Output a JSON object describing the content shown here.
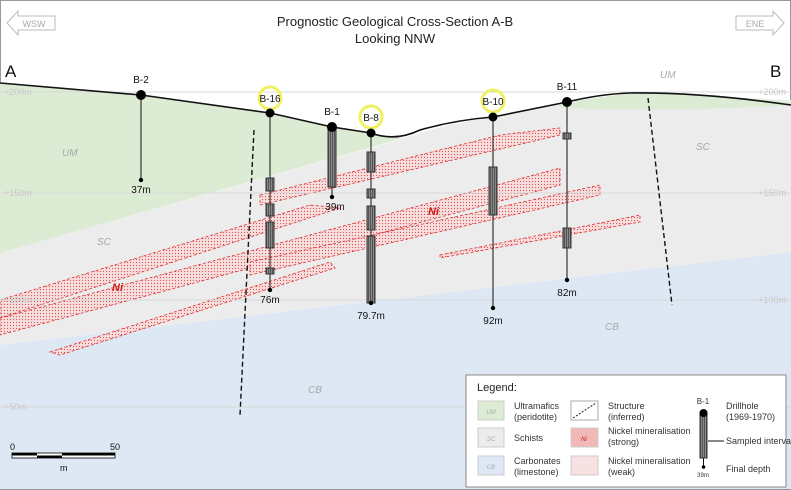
{
  "title": "Prognostic Geological Cross-Section A-B",
  "subtitle": "Looking NNW",
  "section_ends": {
    "left": "A",
    "right": "B"
  },
  "directions": {
    "left": "WSW",
    "right": "ENE"
  },
  "elevations": [
    "+200m",
    "+150m",
    "+100m",
    "+50m"
  ],
  "units": {
    "um": "UM",
    "sc": "SC",
    "cb": "CB",
    "ni": "Ni"
  },
  "drillholes": [
    {
      "name": "B-2",
      "depth": "37m",
      "highlighted": false
    },
    {
      "name": "B-16",
      "depth": "76m",
      "highlighted": true
    },
    {
      "name": "B-1",
      "depth": "39m",
      "highlighted": false
    },
    {
      "name": "B-8",
      "depth": "79.7m",
      "highlighted": true
    },
    {
      "name": "B-10",
      "depth": "92m",
      "highlighted": true
    },
    {
      "name": "B-11",
      "depth": "82m",
      "highlighted": false
    }
  ],
  "scale": {
    "start": "0",
    "end": "50",
    "unit": "m"
  },
  "legend": {
    "title": "Legend:",
    "um": {
      "swatch": "UM",
      "label1": "Ultramafics",
      "label2": "(peridotite)"
    },
    "sc": {
      "swatch": "SC",
      "label1": "Schists"
    },
    "cb": {
      "swatch": "CB",
      "label1": "Carbonates",
      "label2": "(limestone)"
    },
    "structure": {
      "label1": "Structure",
      "label2": "(inferred)"
    },
    "ni_strong": {
      "swatch": "Ni",
      "label1": "Nickel mineralisation",
      "label2": "(strong)"
    },
    "ni_weak": {
      "label1": "Nickel mineralisation",
      "label2": "(weak)"
    },
    "drillhole": {
      "name": "B-1",
      "label1": "Drillhole",
      "label2": "(1969-1970)",
      "sampled": "Sampled interval",
      "depth": "39m",
      "final": "Final depth"
    }
  },
  "colors": {
    "um": "#dcebd4",
    "sc": "#ececec",
    "cb": "#dde8f4",
    "ni": "#e02020",
    "highlight": "#f0f060"
  }
}
